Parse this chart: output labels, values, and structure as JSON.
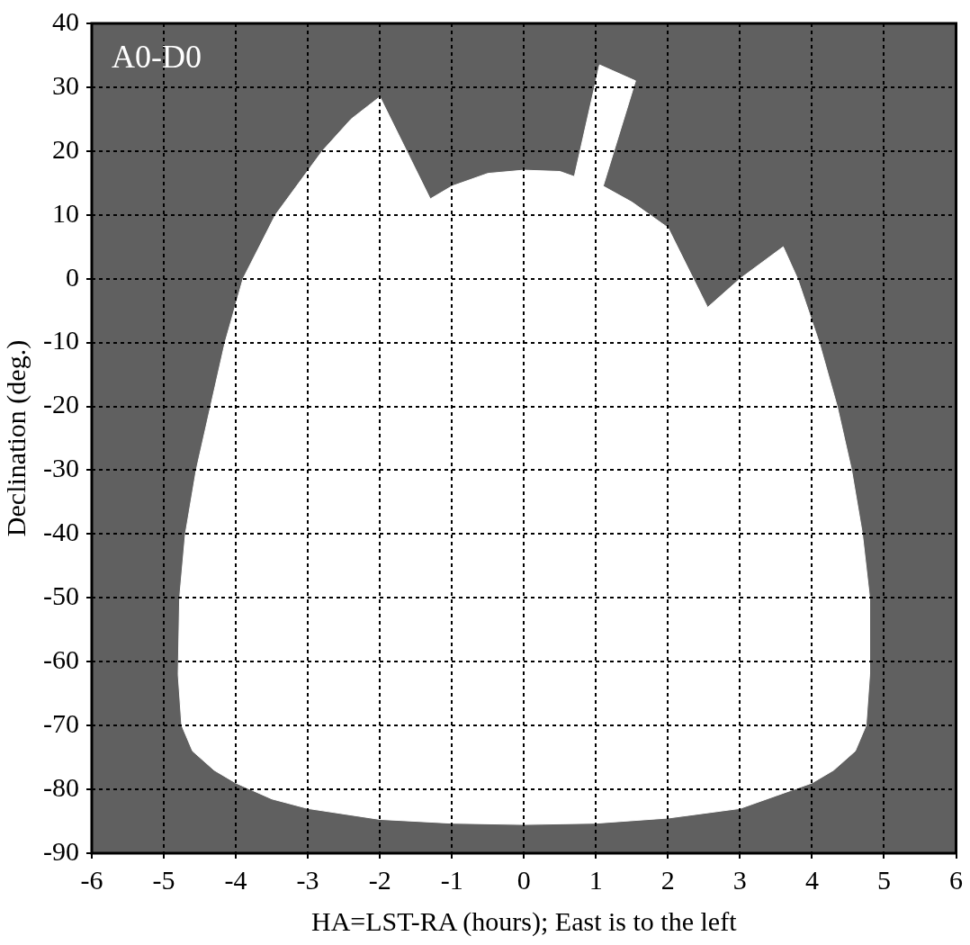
{
  "chart_data": {
    "type": "area",
    "xlabel": "HA=LST-RA (hours); East is to the left",
    "ylabel": "Declination (deg.)",
    "annotations": [
      "A0-D0"
    ],
    "xlim": [
      -6,
      6
    ],
    "xticks": [
      -6,
      -5,
      -4,
      -3,
      -2,
      -1,
      0,
      1,
      2,
      3,
      4,
      5,
      6
    ],
    "ylim": [
      -90,
      40
    ],
    "yticks": [
      -90,
      -80,
      -70,
      -60,
      -50,
      -40,
      -30,
      -20,
      -10,
      0,
      10,
      20,
      30,
      40
    ],
    "grid": true,
    "series": [
      {
        "color": "#ffffff",
        "x": [
          -4.8,
          -4.78,
          -4.7,
          -4.55,
          -4.35,
          -4.15,
          -3.9,
          -3.45,
          -2.8,
          -2.4,
          -2.0,
          -1.3,
          -1.0,
          -0.5,
          0,
          0.5,
          0.7,
          1.05,
          1.55,
          1.1,
          1.5,
          2.0,
          2.55,
          3.0,
          3.6,
          3.8,
          4.1,
          4.35,
          4.55,
          4.7,
          4.8,
          4.8,
          4.75,
          4.6,
          4.3,
          4.0,
          3.5,
          3.0,
          2.0,
          1.0,
          0,
          -1,
          -2,
          -3,
          -3.5,
          -4.0,
          -4.3,
          -4.6,
          -4.75,
          -4.8
        ],
        "values": [
          -62,
          -50,
          -40,
          -30,
          -20,
          -10,
          0,
          10,
          20,
          25,
          28.5,
          12.5,
          14.5,
          16.5,
          17,
          16.8,
          16,
          33.5,
          31,
          14.5,
          12,
          8,
          -4.5,
          0,
          5,
          0,
          -10,
          -20,
          -30,
          -40,
          -50,
          -62,
          -70,
          -74,
          -77,
          -79,
          -81,
          -83,
          -84.5,
          -85.3,
          -85.5,
          -85.3,
          -84.7,
          -83,
          -81.5,
          -79,
          -77,
          -74,
          -70,
          -62
        ]
      }
    ]
  }
}
